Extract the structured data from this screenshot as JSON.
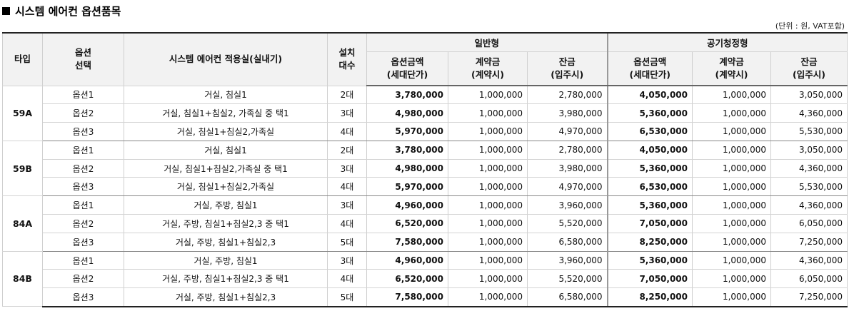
{
  "title": "시스템 에어컨 옵션품목",
  "unit_note": "(단위 : 원, VAT포함)",
  "headers": {
    "type": "타입",
    "option_line1": "옵션",
    "option_line2": "선택",
    "rooms": "시스템 에어컨 적용실(실내기)",
    "count_line1": "설치",
    "count_line2": "대수",
    "group_general": "일반형",
    "group_public": "공기청정형",
    "price_line1": "옵션금액",
    "price_line2": "(세대단가)",
    "deposit_line1": "계약금",
    "deposit_line2": "(계약시)",
    "balance_line1": "잔금",
    "balance_line2": "(입주시)"
  },
  "groups": [
    {
      "type": "59A",
      "rows": [
        {
          "option": "옵션1",
          "rooms": "거실, 침실1",
          "count": "2대",
          "g_price": "3,780,000",
          "g_deposit": "1,000,000",
          "g_balance": "2,780,000",
          "p_price": "4,050,000",
          "p_deposit": "1,000,000",
          "p_balance": "3,050,000"
        },
        {
          "option": "옵션2",
          "rooms": "거실, 침실1+침실2, 가족실 중 택1",
          "count": "3대",
          "g_price": "4,980,000",
          "g_deposit": "1,000,000",
          "g_balance": "3,980,000",
          "p_price": "5,360,000",
          "p_deposit": "1,000,000",
          "p_balance": "4,360,000"
        },
        {
          "option": "옵션3",
          "rooms": "거실, 침실1+침실2,가족실",
          "count": "4대",
          "g_price": "5,970,000",
          "g_deposit": "1,000,000",
          "g_balance": "4,970,000",
          "p_price": "6,530,000",
          "p_deposit": "1,000,000",
          "p_balance": "5,530,000"
        }
      ]
    },
    {
      "type": "59B",
      "rows": [
        {
          "option": "옵션1",
          "rooms": "거실, 침실1",
          "count": "2대",
          "g_price": "3,780,000",
          "g_deposit": "1,000,000",
          "g_balance": "2,780,000",
          "p_price": "4,050,000",
          "p_deposit": "1,000,000",
          "p_balance": "3,050,000"
        },
        {
          "option": "옵션2",
          "rooms": "거실, 침실1+침실2,가족실 중 택1",
          "count": "3대",
          "g_price": "4,980,000",
          "g_deposit": "1,000,000",
          "g_balance": "3,980,000",
          "p_price": "5,360,000",
          "p_deposit": "1,000,000",
          "p_balance": "4,360,000"
        },
        {
          "option": "옵션3",
          "rooms": "거실, 침실1+침실2,가족실",
          "count": "4대",
          "g_price": "5,970,000",
          "g_deposit": "1,000,000",
          "g_balance": "4,970,000",
          "p_price": "6,530,000",
          "p_deposit": "1,000,000",
          "p_balance": "5,530,000"
        }
      ]
    },
    {
      "type": "84A",
      "rows": [
        {
          "option": "옵션1",
          "rooms": "거실, 주방, 침실1",
          "count": "3대",
          "g_price": "4,960,000",
          "g_deposit": "1,000,000",
          "g_balance": "3,960,000",
          "p_price": "5,360,000",
          "p_deposit": "1,000,000",
          "p_balance": "4,360,000"
        },
        {
          "option": "옵션2",
          "rooms": "거실, 주방, 침실1+침실2,3 중 택1",
          "count": "4대",
          "g_price": "6,520,000",
          "g_deposit": "1,000,000",
          "g_balance": "5,520,000",
          "p_price": "7,050,000",
          "p_deposit": "1,000,000",
          "p_balance": "6,050,000"
        },
        {
          "option": "옵션3",
          "rooms": "거실, 주방, 침실1+침실2,3",
          "count": "5대",
          "g_price": "7,580,000",
          "g_deposit": "1,000,000",
          "g_balance": "6,580,000",
          "p_price": "8,250,000",
          "p_deposit": "1,000,000",
          "p_balance": "7,250,000"
        }
      ]
    },
    {
      "type": "84B",
      "rows": [
        {
          "option": "옵션1",
          "rooms": "거실, 주방, 침실1",
          "count": "3대",
          "g_price": "4,960,000",
          "g_deposit": "1,000,000",
          "g_balance": "3,960,000",
          "p_price": "5,360,000",
          "p_deposit": "1,000,000",
          "p_balance": "4,360,000"
        },
        {
          "option": "옵션2",
          "rooms": "거실, 주방, 침실1+침실2,3 중 택1",
          "count": "4대",
          "g_price": "6,520,000",
          "g_deposit": "1,000,000",
          "g_balance": "5,520,000",
          "p_price": "7,050,000",
          "p_deposit": "1,000,000",
          "p_balance": "6,050,000"
        },
        {
          "option": "옵션3",
          "rooms": "거실, 주방, 침실1+침실2,3",
          "count": "5대",
          "g_price": "7,580,000",
          "g_deposit": "1,000,000",
          "g_balance": "6,580,000",
          "p_price": "8,250,000",
          "p_deposit": "1,000,000",
          "p_balance": "7,250,000"
        }
      ]
    }
  ]
}
